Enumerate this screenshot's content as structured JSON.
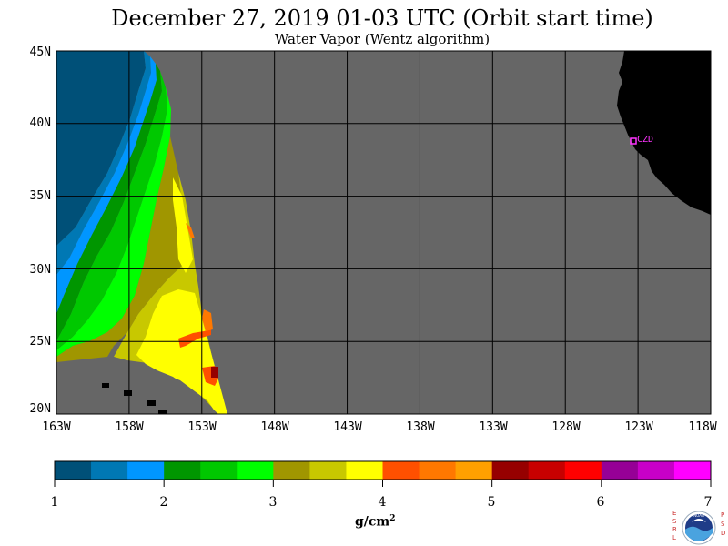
{
  "title": "December 27, 2019  01-03 UTC  (Orbit start time)",
  "subtitle": "Water Vapor (Wentz algorithm)",
  "map": {
    "lat_labels": [
      "45N",
      "40N",
      "35N",
      "30N",
      "25N",
      "20N"
    ],
    "lon_labels": [
      "163W",
      "158W",
      "153W",
      "148W",
      "143W",
      "138W",
      "133W",
      "128W",
      "123W",
      "118W"
    ],
    "station_label": "CZD",
    "colors": {
      "no_data": "#666666",
      "land": "#000000",
      "grid": "#000000",
      "station": "#ff33ff"
    }
  },
  "colorbar": {
    "tick_labels": [
      "1",
      "2",
      "3",
      "4",
      "5",
      "6",
      "7"
    ],
    "units_base": "g/cm",
    "units_exp": "2",
    "colors": [
      "#005078",
      "#0078b4",
      "#0096ff",
      "#009600",
      "#00c800",
      "#00ff00",
      "#a09600",
      "#c8c800",
      "#ffff00",
      "#ff5000",
      "#ff7800",
      "#ffa000",
      "#960000",
      "#c80000",
      "#ff0000",
      "#960096",
      "#c800c8",
      "#ff00ff"
    ]
  },
  "logo": {
    "left_letters": "ESRL",
    "right_letters": "PSD",
    "center_text": "NOAA"
  }
}
